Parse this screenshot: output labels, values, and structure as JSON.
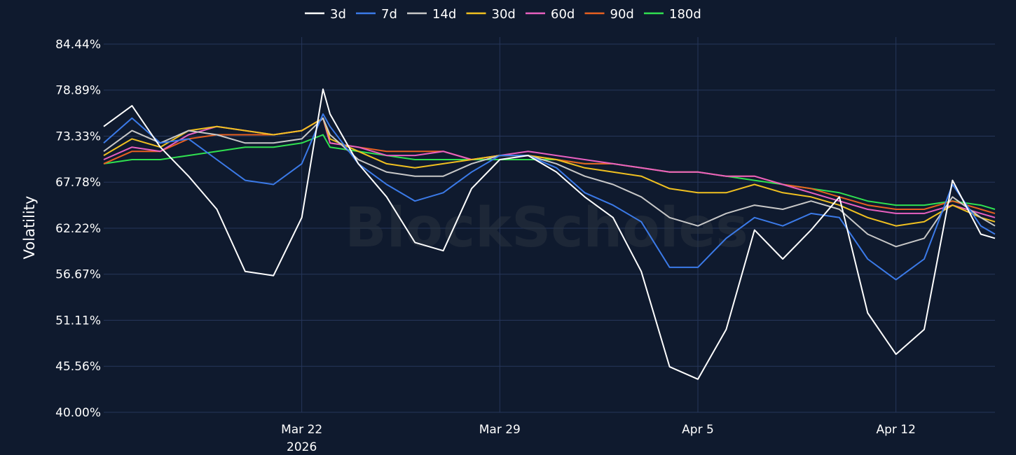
{
  "chart_data": {
    "type": "line",
    "title": "",
    "xlabel": "",
    "ylabel": "Volatility",
    "watermark": "BlockScholes",
    "ylim": [
      40.0,
      84.44
    ],
    "xlim": [
      "2026-03-15T00:00",
      "2026-04-15T12:00"
    ],
    "y_ticks": [
      "40.00%",
      "45.56%",
      "51.11%",
      "56.67%",
      "62.22%",
      "67.78%",
      "73.33%",
      "78.89%",
      "84.44%"
    ],
    "x_ticks": [
      {
        "date": "2026-03-22",
        "label": "Mar 22",
        "sublabel": "2026"
      },
      {
        "date": "2026-03-29",
        "label": "Mar 29",
        "sublabel": ""
      },
      {
        "date": "2026-04-05",
        "label": "Apr 5",
        "sublabel": ""
      },
      {
        "date": "2026-04-12",
        "label": "Apr 12",
        "sublabel": ""
      }
    ],
    "grid": true,
    "legend_position": "top-center",
    "x": [
      "2026-03-15T00:00",
      "2026-03-16T00:00",
      "2026-03-17T00:00",
      "2026-03-18T00:00",
      "2026-03-19T00:00",
      "2026-03-20T00:00",
      "2026-03-21T00:00",
      "2026-03-22T00:00",
      "2026-03-22T18:00",
      "2026-03-23T00:00",
      "2026-03-24T00:00",
      "2026-03-25T00:00",
      "2026-03-26T00:00",
      "2026-03-27T00:00",
      "2026-03-28T00:00",
      "2026-03-29T00:00",
      "2026-03-30T00:00",
      "2026-03-31T00:00",
      "2026-04-01T00:00",
      "2026-04-02T00:00",
      "2026-04-03T00:00",
      "2026-04-04T00:00",
      "2026-04-05T00:00",
      "2026-04-06T00:00",
      "2026-04-07T00:00",
      "2026-04-08T00:00",
      "2026-04-09T00:00",
      "2026-04-10T00:00",
      "2026-04-11T00:00",
      "2026-04-12T00:00",
      "2026-04-13T00:00",
      "2026-04-14T00:00",
      "2026-04-15T00:00",
      "2026-04-15T12:00"
    ],
    "series": [
      {
        "name": "3d",
        "color": "#ffffff",
        "values": [
          74.5,
          77.0,
          72.0,
          68.5,
          64.5,
          57.0,
          56.5,
          63.5,
          79.0,
          76.0,
          70.0,
          66.0,
          60.5,
          59.5,
          67.0,
          70.5,
          71.0,
          69.0,
          66.0,
          63.5,
          57.0,
          45.5,
          44.0,
          50.0,
          62.0,
          58.5,
          62.0,
          66.0,
          52.0,
          47.0,
          50.0,
          68.0,
          61.5,
          61.0
        ]
      },
      {
        "name": "7d",
        "color": "#3b7ae8",
        "values": [
          72.5,
          75.5,
          72.5,
          73.0,
          70.5,
          68.0,
          67.5,
          70.0,
          76.0,
          74.5,
          70.0,
          67.5,
          65.5,
          66.5,
          69.0,
          71.0,
          71.0,
          69.5,
          66.5,
          65.0,
          63.0,
          57.5,
          57.5,
          61.0,
          63.5,
          62.5,
          64.0,
          63.5,
          58.5,
          56.0,
          58.5,
          67.5,
          62.5,
          61.5
        ]
      },
      {
        "name": "14d",
        "color": "#c8c8c8",
        "values": [
          71.5,
          74.0,
          72.5,
          74.0,
          73.5,
          72.5,
          72.5,
          73.0,
          75.5,
          73.5,
          70.5,
          69.0,
          68.5,
          68.5,
          70.0,
          71.0,
          71.0,
          70.0,
          68.5,
          67.5,
          66.0,
          63.5,
          62.5,
          64.0,
          65.0,
          64.5,
          65.5,
          64.5,
          61.5,
          60.0,
          61.0,
          66.0,
          63.5,
          62.5
        ]
      },
      {
        "name": "30d",
        "color": "#f0c020",
        "values": [
          71.0,
          73.0,
          72.0,
          74.0,
          74.5,
          74.0,
          73.5,
          74.0,
          75.5,
          73.0,
          71.5,
          70.0,
          69.5,
          70.0,
          70.5,
          71.0,
          71.0,
          70.5,
          69.5,
          69.0,
          68.5,
          67.0,
          66.5,
          66.5,
          67.5,
          66.5,
          66.0,
          65.0,
          63.5,
          62.5,
          63.0,
          65.0,
          63.5,
          63.0
        ]
      },
      {
        "name": "60d",
        "color": "#e860c0",
        "values": [
          70.5,
          72.0,
          71.5,
          73.5,
          74.5,
          74.0,
          73.5,
          74.0,
          75.5,
          72.5,
          72.0,
          71.0,
          71.0,
          71.5,
          70.5,
          71.0,
          71.5,
          71.0,
          70.5,
          70.0,
          69.5,
          69.0,
          69.0,
          68.5,
          68.5,
          67.5,
          66.5,
          65.5,
          64.5,
          64.0,
          64.0,
          65.0,
          64.0,
          63.5
        ]
      },
      {
        "name": "90d",
        "color": "#e86020",
        "values": [
          70.0,
          71.5,
          71.5,
          73.0,
          73.5,
          73.5,
          73.5,
          74.0,
          75.5,
          72.5,
          72.0,
          71.5,
          71.5,
          71.5,
          70.5,
          71.0,
          71.0,
          70.5,
          70.0,
          70.0,
          69.5,
          69.0,
          69.0,
          68.5,
          68.5,
          67.5,
          67.0,
          66.0,
          65.0,
          64.5,
          64.5,
          65.5,
          64.5,
          64.0
        ]
      },
      {
        "name": "180d",
        "color": "#30e050",
        "values": [
          70.0,
          70.5,
          70.5,
          71.0,
          71.5,
          72.0,
          72.0,
          72.5,
          73.5,
          72.0,
          71.5,
          71.0,
          70.5,
          70.5,
          70.5,
          70.5,
          70.5,
          70.5,
          70.0,
          70.0,
          69.5,
          69.0,
          69.0,
          68.5,
          68.0,
          67.5,
          67.0,
          66.5,
          65.5,
          65.0,
          65.0,
          65.5,
          65.0,
          64.5
        ]
      }
    ]
  }
}
